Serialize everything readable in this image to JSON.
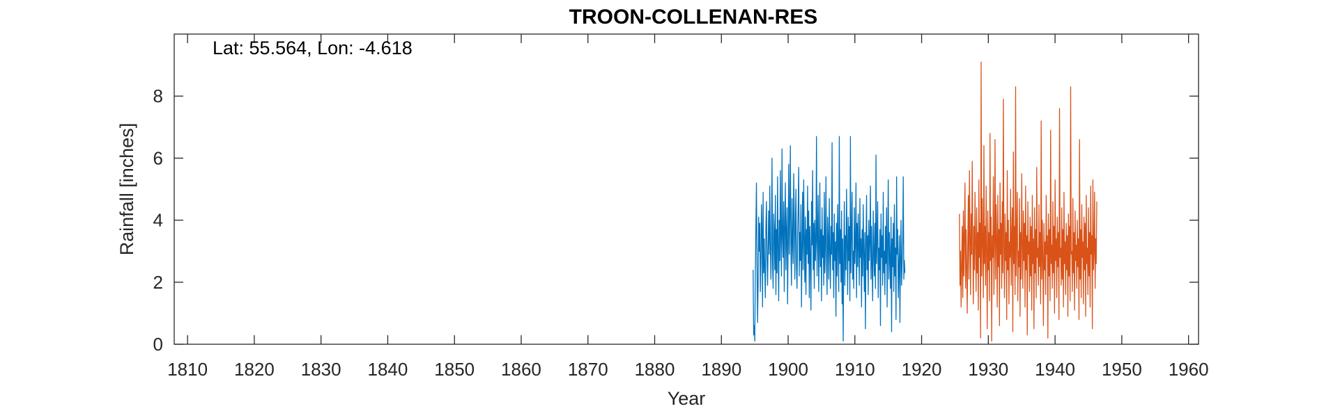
{
  "chart_data": {
    "type": "line",
    "title": "TROON-COLLENAN-RES",
    "annotation": "Lat: 55.564, Lon: -4.618",
    "xlabel": "Year",
    "ylabel": "Rainfall [inches]",
    "xlim": [
      1808,
      1961.5
    ],
    "ylim": [
      0,
      10
    ],
    "xticks": [
      1810,
      1820,
      1830,
      1840,
      1850,
      1860,
      1870,
      1880,
      1890,
      1900,
      1910,
      1920,
      1930,
      1940,
      1950,
      1960
    ],
    "yticks": [
      0,
      2,
      4,
      6,
      8
    ],
    "grid": false,
    "series": [
      {
        "color": "#0072BD",
        "x_start": 1894.75,
        "step": 0.0833333,
        "values": [
          2.4,
          0.3,
          0.6,
          0.1,
          2.2,
          3.8,
          5.2,
          2.7,
          0.7,
          1.9,
          4.1,
          3.0,
          3.9,
          1.7,
          2.6,
          4.5,
          3.7,
          1.2,
          4.9,
          2.3,
          3.4,
          2.4,
          1.5,
          3.8,
          4.6,
          2.8,
          1.9,
          3.1,
          4.3,
          2.9,
          5.1,
          3.3,
          2.1,
          3.4,
          6.0,
          2.5,
          1.8,
          4.2,
          3.6,
          2.4,
          4.8,
          1.6,
          3.7,
          2.3,
          5.4,
          3.1,
          1.4,
          4.0,
          2.7,
          5.6,
          3.4,
          2.2,
          6.3,
          3.5,
          2.8,
          4.6,
          1.7,
          3.9,
          5.2,
          2.4,
          3.6,
          4.4,
          1.3,
          3.2,
          5.8,
          2.9,
          4.1,
          6.4,
          3.0,
          1.9,
          4.7,
          3.3,
          2.6,
          5.5,
          4.2,
          2.1,
          3.8,
          5.0,
          2.5,
          1.8,
          3.5,
          4.4,
          5.7,
          2.2,
          3.6,
          2.7,
          4.5,
          1.2,
          3.1,
          4.9,
          2.4,
          5.3,
          3.4,
          2.0,
          4.1,
          1.6,
          3.7,
          2.9,
          5.1,
          2.6,
          4.3,
          1.5,
          3.8,
          2.8,
          1.1,
          4.6,
          3.2,
          5.6,
          2.4,
          3.9,
          1.8,
          4.0,
          2.7,
          3.3,
          6.7,
          2.2,
          3.6,
          4.8,
          1.7,
          3.0,
          5.2,
          2.5,
          3.7,
          1.4,
          4.4,
          2.8,
          3.5,
          1.9,
          4.9,
          2.3,
          3.2,
          5.4,
          2.6,
          1.6,
          4.1,
          3.4,
          2.1,
          4.7,
          3.0,
          1.8,
          3.8,
          2.9,
          6.5,
          2.4,
          3.6,
          1.5,
          4.2,
          2.7,
          3.3,
          0.9,
          3.9,
          2.2,
          4.5,
          3.1,
          1.7,
          6.7,
          2.6,
          3.7,
          2.0,
          4.3,
          1.3,
          3.4,
          0.1,
          2.8,
          4.6,
          1.9,
          3.5,
          2.4,
          5.0,
          3.2,
          1.6,
          4.1,
          2.7,
          3.8,
          1.4,
          6.7,
          2.3,
          3.6,
          4.9,
          2.1,
          3.0,
          1.8,
          4.4,
          2.6,
          3.3,
          5.2,
          1.5,
          3.9,
          2.5,
          4.2,
          3.1,
          1.9,
          4.7,
          2.8,
          3.4,
          1.2,
          3.7,
          2.2,
          4.5,
          2.9,
          1.7,
          3.6,
          0.5,
          3.2,
          4.8,
          2.4,
          3.5,
          1.6,
          4.0,
          2.7,
          3.3,
          5.1,
          2.1,
          3.8,
          2.5,
          1.4,
          4.3,
          3.0,
          2.2,
          3.9,
          1.8,
          6.1,
          2.6,
          3.4,
          4.6,
          1.5,
          3.1,
          2.4,
          3.7,
          0.6,
          4.2,
          2.8,
          3.5,
          1.9,
          4.9,
          2.3,
          3.0,
          1.6,
          3.8,
          2.6,
          4.4,
          1.2,
          3.3,
          5.3,
          2.1,
          3.6,
          2.7,
          1.8,
          4.1,
          0.4,
          3.4,
          2.5,
          3.9,
          1.7,
          4.5,
          2.2,
          3.1,
          0.8,
          5.4,
          2.9,
          3.7,
          1.5,
          2.4,
          3.5,
          0.7,
          2.8,
          4.0,
          1.9,
          2.6,
          3.3,
          5.4,
          2.1,
          2.7,
          2.3
        ]
      },
      {
        "color": "#D95319",
        "x_start": 1925.67,
        "step": 0.0833333,
        "values": [
          4.2,
          1.9,
          3.0,
          1.2,
          2.6,
          3.8,
          1.5,
          4.3,
          2.2,
          3.4,
          5.2,
          1.8,
          3.7,
          2.5,
          1.0,
          3.3,
          4.8,
          2.1,
          5.6,
          3.5,
          1.6,
          4.2,
          2.9,
          5.9,
          3.1,
          1.3,
          3.8,
          2.4,
          4.9,
          3.2,
          1.7,
          4.4,
          2.3,
          3.6,
          1.1,
          5.3,
          2.8,
          3.9,
          0.2,
          9.1,
          2.2,
          4.7,
          3.3,
          1.5,
          6.4,
          2.6,
          3.8,
          1.9,
          5.1,
          3.0,
          0.5,
          4.3,
          2.4,
          3.6,
          1.4,
          6.8,
          2.7,
          4.1,
          0.1,
          3.5,
          2.8,
          5.4,
          1.6,
          3.2,
          6.6,
          2.1,
          4.5,
          3.4,
          1.2,
          4.8,
          2.5,
          3.7,
          0.6,
          5.2,
          2.9,
          3.9,
          1.8,
          4.6,
          2.3,
          7.9,
          3.1,
          1.5,
          4.2,
          2.7,
          3.6,
          0.8,
          5.6,
          2.4,
          4.0,
          1.3,
          3.3,
          2.8,
          5.0,
          1.9,
          3.5,
          4.4,
          0.4,
          6.2,
          2.6,
          3.8,
          1.6,
          8.3,
          2.2,
          3.4,
          4.9,
          1.4,
          3.0,
          2.5,
          4.7,
          0.9,
          3.6,
          2.1,
          5.5,
          3.2,
          1.8,
          4.3,
          2.7,
          3.9,
          1.2,
          5.1,
          2.4,
          3.5,
          0.3,
          4.6,
          2.9,
          3.3,
          1.7,
          4.1,
          2.2,
          3.8,
          1.1,
          4.8,
          2.6,
          3.4,
          0.5,
          4.4,
          2.3,
          3.7,
          1.5,
          5.7,
          2.8,
          3.1,
          1.9,
          4.5,
          2.5,
          3.6,
          1.3,
          7.2,
          2.1,
          4.0,
          2.7,
          0.6,
          3.9,
          2.4,
          3.3,
          1.6,
          4.8,
          2.9,
          3.5,
          0.2,
          4.2,
          2.2,
          3.7,
          1.4,
          6.9,
          2.6,
          3.2,
          1.8,
          4.6,
          2.3,
          3.8,
          1.0,
          5.3,
          2.7,
          3.4,
          1.5,
          4.1,
          2.5,
          3.6,
          0.8,
          7.6,
          2.8,
          3.1,
          1.9,
          4.4,
          2.1,
          3.7,
          1.2,
          4.9,
          2.6,
          3.3,
          1.6,
          3.9,
          2.4,
          3.5,
          0.9,
          4.2,
          2.2,
          3.8,
          1.4,
          8.3,
          2.9,
          3.0,
          1.7,
          4.7,
          2.3,
          3.6,
          1.1,
          4.3,
          2.7,
          3.2,
          1.8,
          4.0,
          2.5,
          3.4,
          0.8,
          6.6,
          2.1,
          3.7,
          1.5,
          4.5,
          2.8,
          3.3,
          1.3,
          4.1,
          2.4,
          3.9,
          0.9,
          4.8,
          2.6,
          3.1,
          1.6,
          4.4,
          2.2,
          3.6,
          1.2,
          5.1,
          2.9,
          3.5,
          0.5,
          5.3,
          2.4,
          3.0,
          4.9,
          1.8,
          3.4,
          2.6,
          4.6
        ]
      }
    ]
  }
}
